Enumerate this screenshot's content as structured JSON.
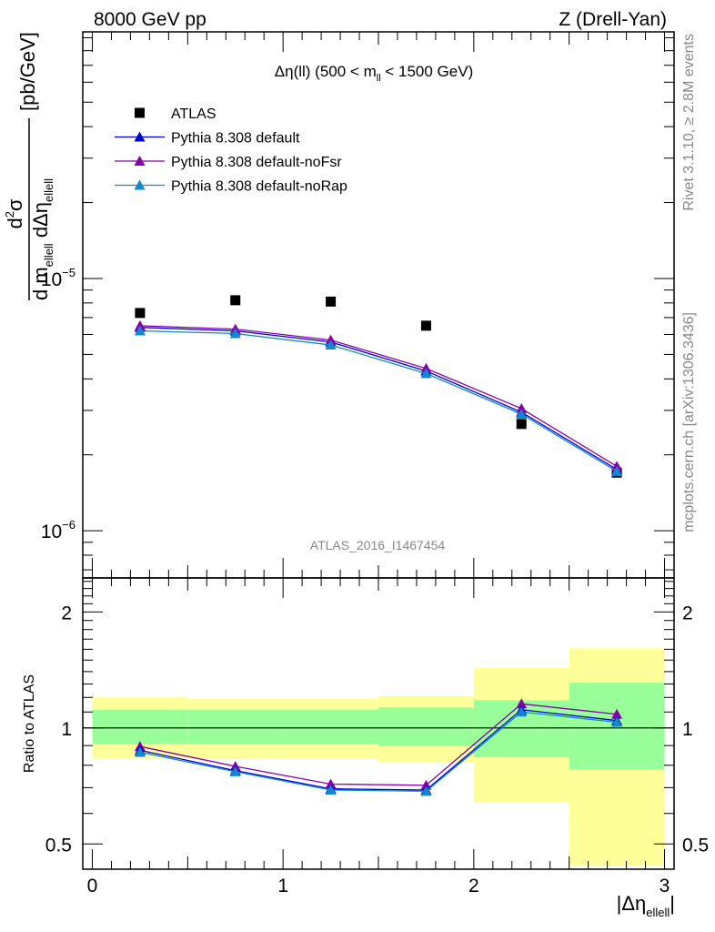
{
  "header": {
    "left": "8000 GeV pp",
    "right": "Z (Drell-Yan)"
  },
  "side_text": {
    "rivet": "Rivet 3.1.10, ≥ 2.8M events",
    "mcplots": "mcplots.cern.ch [arXiv:1306.3436]"
  },
  "watermark": "ATLAS_2016_I1467454",
  "colors": {
    "atlas": "#000000",
    "default": "#0000cc",
    "noFsr": "#8800aa",
    "noRap": "#1188cc",
    "band_outer": "#ffff99",
    "band_inner": "#99ff99"
  },
  "chart_data": [
    {
      "type": "scatter",
      "title_main": "Δη(ll) (500 < m",
      "title_sub": "ll",
      "title_end": " < 1500 GeV)",
      "ylabel": "[pb/GeV]",
      "yscale": "log",
      "ylim": [
        6.5e-07,
        9.5e-05
      ],
      "xlim": [
        -0.05,
        3.05
      ],
      "y_tick_labels": [
        {
          "value": 1e-05,
          "base": "10",
          "exp": "−5"
        },
        {
          "value": 1e-06,
          "base": "10",
          "exp": "−6"
        }
      ],
      "legend_position": "top-left",
      "x": [
        0.25,
        0.75,
        1.25,
        1.75,
        2.25,
        2.75
      ],
      "series": [
        {
          "name": "ATLAS",
          "key": "atlas",
          "marker": "square",
          "line": false,
          "values": [
            7.3e-06,
            8.2e-06,
            8.1e-06,
            6.5e-06,
            2.65e-06,
            1.7e-06
          ]
        },
        {
          "name": "Pythia 8.308 default",
          "key": "default",
          "marker": "triangle",
          "line": true,
          "values": [
            6.4e-06,
            6.2e-06,
            5.6e-06,
            4.3e-06,
            2.95e-06,
            1.75e-06
          ]
        },
        {
          "name": "Pythia 8.308 default-noFsr",
          "key": "noFsr",
          "marker": "triangle",
          "line": true,
          "values": [
            6.5e-06,
            6.3e-06,
            5.7e-06,
            4.4e-06,
            3.05e-06,
            1.8e-06
          ]
        },
        {
          "name": "Pythia 8.308 default-noRap",
          "key": "noRap",
          "marker": "triangle",
          "line": true,
          "values": [
            6.2e-06,
            6.05e-06,
            5.45e-06,
            4.2e-06,
            2.9e-06,
            1.72e-06
          ]
        }
      ]
    },
    {
      "type": "line",
      "ylabel": "Ratio to ATLAS",
      "yscale": "log",
      "ylim": [
        0.43,
        2.45
      ],
      "xlim": [
        -0.05,
        3.05
      ],
      "xlabel_main": "|Δη",
      "xlabel_sub": "ellell",
      "xlabel_end": "|",
      "y_ticks": [
        0.5,
        1,
        2
      ],
      "y_tick_labels": [
        "0.5",
        "1",
        "2"
      ],
      "x_ticks": [
        0,
        1,
        2,
        3
      ],
      "x_tick_labels": [
        "0",
        "1",
        "2",
        "3"
      ],
      "reference_line": 1,
      "bins": [
        {
          "lo": 0.0,
          "hi": 0.5,
          "outer": [
            0.835,
            1.2
          ],
          "inner": [
            0.91,
            1.115
          ]
        },
        {
          "lo": 0.5,
          "hi": 1.0,
          "outer": [
            0.835,
            1.19
          ],
          "inner": [
            0.91,
            1.115
          ]
        },
        {
          "lo": 1.0,
          "hi": 1.5,
          "outer": [
            0.835,
            1.19
          ],
          "inner": [
            0.91,
            1.115
          ]
        },
        {
          "lo": 1.5,
          "hi": 2.0,
          "outer": [
            0.815,
            1.21
          ],
          "inner": [
            0.9,
            1.13
          ]
        },
        {
          "lo": 2.0,
          "hi": 2.5,
          "outer": [
            0.64,
            1.43
          ],
          "inner": [
            0.84,
            1.18
          ]
        },
        {
          "lo": 2.5,
          "hi": 3.0,
          "outer": [
            0.44,
            1.61
          ],
          "inner": [
            0.78,
            1.31
          ]
        }
      ],
      "x": [
        0.25,
        0.75,
        1.25,
        1.75,
        2.25,
        2.75
      ],
      "series": [
        {
          "key": "noFsr",
          "values": [
            0.895,
            0.795,
            0.715,
            0.71,
            1.155,
            1.085
          ]
        },
        {
          "key": "default",
          "values": [
            0.875,
            0.775,
            0.695,
            0.69,
            1.115,
            1.045
          ]
        },
        {
          "key": "noRap",
          "values": [
            0.865,
            0.77,
            0.69,
            0.685,
            1.1,
            1.035
          ]
        }
      ]
    }
  ]
}
